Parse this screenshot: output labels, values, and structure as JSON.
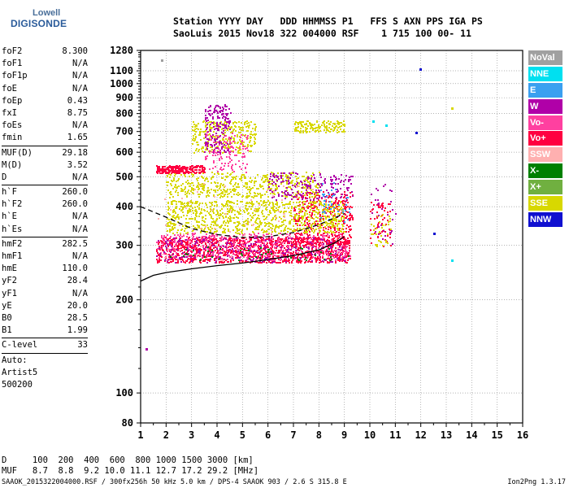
{
  "logo": {
    "line1": "Lowell",
    "line2": "DIGISONDE"
  },
  "header": {
    "line1": "Station YYYY DAY   DDD HHMMSS P1   FFS S AXN PPS IGA PS",
    "line2": "SaoLuis 2015 Nov18 322 004000 RSF    1 715 100 00- 11"
  },
  "params": [
    {
      "key": "foF2",
      "value": "8.300"
    },
    {
      "key": "foF1",
      "value": "N/A"
    },
    {
      "key": "foF1p",
      "value": "N/A"
    },
    {
      "key": "foE",
      "value": "N/A"
    },
    {
      "key": "foEp",
      "value": "0.43"
    },
    {
      "key": "fxI",
      "value": "8.75"
    },
    {
      "key": "foEs",
      "value": "N/A"
    },
    {
      "key": "fmin",
      "value": "1.65"
    },
    {
      "key": "MUF(D)",
      "value": "29.18"
    },
    {
      "key": "M(D)",
      "value": "3.52"
    },
    {
      "key": "D",
      "value": "N/A"
    },
    {
      "key": "h`F",
      "value": "260.0"
    },
    {
      "key": "h`F2",
      "value": "260.0"
    },
    {
      "key": "h`E",
      "value": "N/A"
    },
    {
      "key": "h`Es",
      "value": "N/A"
    },
    {
      "key": "hmF2",
      "value": "282.5"
    },
    {
      "key": "hmF1",
      "value": "N/A"
    },
    {
      "key": "hmE",
      "value": "110.0"
    },
    {
      "key": "yF2",
      "value": "28.4"
    },
    {
      "key": "yF1",
      "value": "N/A"
    },
    {
      "key": "yE",
      "value": "20.0"
    },
    {
      "key": "B0",
      "value": "28.5"
    },
    {
      "key": "B1",
      "value": "1.99"
    },
    {
      "key": "C-level",
      "value": "33"
    }
  ],
  "scaling_note": {
    "line1": "Auto:",
    "line2": "Artist5",
    "line3": "500200"
  },
  "legend": [
    {
      "label": "NoVal",
      "color": "#a0a0a0"
    },
    {
      "label": "NNE",
      "color": "#00e0f0"
    },
    {
      "label": "E",
      "color": "#3aa0f0"
    },
    {
      "label": "W",
      "color": "#b000a8"
    },
    {
      "label": "Vo-",
      "color": "#ff40a0"
    },
    {
      "label": "Vo+",
      "color": "#ff0040"
    },
    {
      "label": "SSW",
      "color": "#ffb0b0"
    },
    {
      "label": "X-",
      "color": "#008000"
    },
    {
      "label": "X+",
      "color": "#70b040"
    },
    {
      "label": "SSE",
      "color": "#d8d800"
    },
    {
      "label": "NNW",
      "color": "#1010d0"
    }
  ],
  "footer": {
    "line1": "D     100  200  400  600  800 1000 1500 3000 [km]",
    "line2": "MUF   8.7  8.8  9.2 10.0 11.1 12.7 17.2 29.2 [MHz]",
    "line3": "SAAOK_2015322004000.RSF / 300fx256h 50 kHz 5.0 km / DPS-4 SAAOK 903 / 2.6 S 315.8 E",
    "version": "Ion2Png 1.3.17"
  },
  "chart_data": {
    "type": "scatter",
    "xlim": [
      1,
      16
    ],
    "ylim": [
      80,
      1280
    ],
    "x_ticks": [
      1,
      2,
      3,
      4,
      5,
      6,
      7,
      8,
      9,
      10,
      11,
      12,
      13,
      14,
      15,
      16
    ],
    "y_ticks": [
      80,
      100,
      200,
      300,
      400,
      500,
      600,
      700,
      800,
      900,
      1000,
      1100,
      1280
    ],
    "y_scale": "log",
    "grid": true,
    "trace_regions": [
      {
        "color": "#ff0040",
        "count": 1200,
        "x": [
          1.6,
          9.2
        ],
        "y": [
          265,
          320
        ]
      },
      {
        "color": "#ff40a0",
        "count": 500,
        "x": [
          1.6,
          9.2
        ],
        "y": [
          270,
          330
        ]
      },
      {
        "color": "#b000a8",
        "count": 250,
        "x": [
          1.6,
          9.0
        ],
        "y": [
          265,
          320
        ]
      },
      {
        "color": "#ff0040",
        "count": 400,
        "x": [
          7.0,
          9.3
        ],
        "y": [
          300,
          450
        ]
      },
      {
        "color": "#d8d800",
        "count": 900,
        "x": [
          2.0,
          9.0
        ],
        "y": [
          330,
          420
        ]
      },
      {
        "color": "#d8d800",
        "count": 500,
        "x": [
          2.0,
          8.0
        ],
        "y": [
          430,
          520
        ]
      },
      {
        "color": "#d8d800",
        "count": 300,
        "x": [
          3.0,
          5.5
        ],
        "y": [
          600,
          760
        ]
      },
      {
        "color": "#d8d800",
        "count": 150,
        "x": [
          7.0,
          9.0
        ],
        "y": [
          700,
          760
        ]
      },
      {
        "color": "#ff0040",
        "count": 250,
        "x": [
          1.6,
          3.5
        ],
        "y": [
          515,
          545
        ]
      },
      {
        "color": "#b000a8",
        "count": 180,
        "x": [
          3.5,
          4.5
        ],
        "y": [
          600,
          860
        ]
      },
      {
        "color": "#ff40a0",
        "count": 120,
        "x": [
          3.5,
          5.2
        ],
        "y": [
          520,
          700
        ]
      },
      {
        "color": "#b000a8",
        "count": 200,
        "x": [
          6.0,
          9.3
        ],
        "y": [
          420,
          520
        ]
      },
      {
        "color": "#3aa0f0",
        "count": 40,
        "x": [
          8.0,
          9.2
        ],
        "y": [
          350,
          480
        ]
      },
      {
        "color": "#008000",
        "count": 50,
        "x": [
          2.0,
          9.2
        ],
        "y": [
          270,
          300
        ]
      },
      {
        "color": "#ffb0b0",
        "count": 80,
        "x": [
          1.6,
          9.0
        ],
        "y": [
          270,
          480
        ]
      },
      {
        "color": "#ff0040",
        "count": 60,
        "x": [
          10.0,
          10.8
        ],
        "y": [
          300,
          420
        ]
      },
      {
        "color": "#d8d800",
        "count": 40,
        "x": [
          10.0,
          10.8
        ],
        "y": [
          300,
          380
        ]
      },
      {
        "color": "#b000a8",
        "count": 30,
        "x": [
          10.0,
          11.0
        ],
        "y": [
          300,
          480
        ]
      }
    ],
    "isolated_points": [
      {
        "x": 1.2,
        "y": 140,
        "color": "#b000a8"
      },
      {
        "x": 11.95,
        "y": 1120,
        "color": "#1010d0"
      },
      {
        "x": 12.5,
        "y": 330,
        "color": "#1010d0"
      },
      {
        "x": 13.2,
        "y": 270,
        "color": "#00e0f0"
      },
      {
        "x": 11.8,
        "y": 700,
        "color": "#1010d0"
      },
      {
        "x": 10.1,
        "y": 760,
        "color": "#00e0f0"
      },
      {
        "x": 10.6,
        "y": 740,
        "color": "#00e0f0"
      },
      {
        "x": 13.2,
        "y": 840,
        "color": "#d8d800"
      },
      {
        "x": 1.8,
        "y": 1200,
        "color": "#a0a0a0"
      }
    ],
    "curves": [
      {
        "name": "profile",
        "style": "solid",
        "points": [
          [
            1.0,
            230
          ],
          [
            1.5,
            240
          ],
          [
            2.0,
            245
          ],
          [
            3.0,
            252
          ],
          [
            4.0,
            258
          ],
          [
            5.0,
            263
          ],
          [
            6.0,
            270
          ],
          [
            7.0,
            278
          ],
          [
            8.0,
            290
          ],
          [
            8.6,
            305
          ],
          [
            9.0,
            320
          ]
        ]
      },
      {
        "name": "model",
        "style": "dashed",
        "points": [
          [
            1.0,
            400
          ],
          [
            2.0,
            370
          ],
          [
            3.0,
            340
          ],
          [
            4.0,
            325
          ],
          [
            5.0,
            318
          ],
          [
            6.0,
            320
          ],
          [
            7.0,
            330
          ],
          [
            8.0,
            350
          ],
          [
            9.0,
            380
          ]
        ]
      }
    ]
  }
}
